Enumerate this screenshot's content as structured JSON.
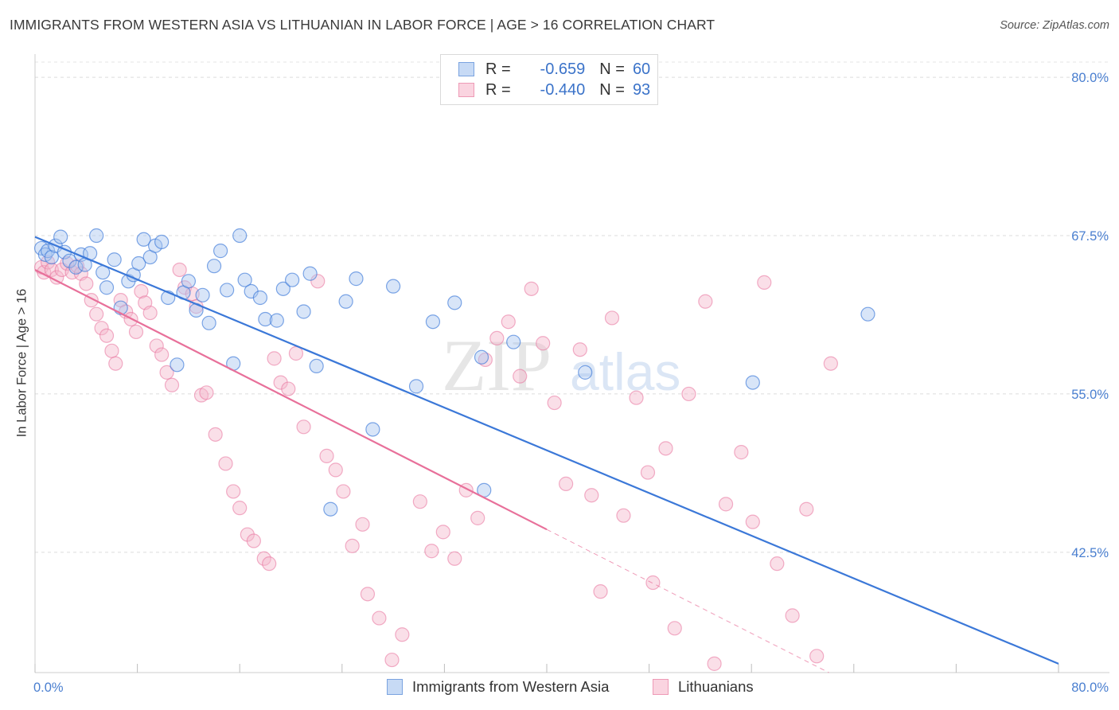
{
  "title": "IMMIGRANTS FROM WESTERN ASIA VS LITHUANIAN IN LABOR FORCE | AGE > 16 CORRELATION CHART",
  "source": "Source: ZipAtlas.com",
  "watermark": {
    "zip": "ZIP",
    "atlas": "atlas"
  },
  "legend": {
    "rows": [
      {
        "r_label": "R =",
        "r_value": "-0.659",
        "n_label": "N =",
        "n_value": "60"
      },
      {
        "r_label": "R =",
        "r_value": "-0.440",
        "n_label": "N =",
        "n_value": "93"
      }
    ]
  },
  "chart_data": {
    "type": "scatter",
    "ylabel": "In Labor Force | Age > 16",
    "xlabel": "",
    "xlim": [
      0,
      80
    ],
    "ylim": [
      33.0,
      81.2
    ],
    "x_ticks": [
      0,
      80
    ],
    "x_tick_labels": [
      "0.0%",
      "80.0%"
    ],
    "y_ticks": [
      42.5,
      55.0,
      67.5,
      80.0
    ],
    "y_tick_labels": [
      "42.5%",
      "55.0%",
      "67.5%",
      "80.0%"
    ],
    "grid": true,
    "legend_position": "bottom",
    "colors": {
      "blue": "#3b78d8",
      "blue_fill": "#a9c6f0",
      "pink": "#e8709a",
      "pink_fill": "#f4b7cb"
    },
    "series": [
      {
        "name": "Immigrants from Western Asia",
        "color": "#3b78d8",
        "trend": {
          "x0": 0,
          "y0": 67.4,
          "x1": 80,
          "y1": 33.7
        },
        "points": [
          [
            0.5,
            66.5
          ],
          [
            0.8,
            66.0
          ],
          [
            1.0,
            66.3
          ],
          [
            1.3,
            65.8
          ],
          [
            1.6,
            66.7
          ],
          [
            2.0,
            67.4
          ],
          [
            2.3,
            66.2
          ],
          [
            2.7,
            65.5
          ],
          [
            3.2,
            65.0
          ],
          [
            3.6,
            66.0
          ],
          [
            3.9,
            65.2
          ],
          [
            4.3,
            66.1
          ],
          [
            4.8,
            67.5
          ],
          [
            5.3,
            64.6
          ],
          [
            5.6,
            63.4
          ],
          [
            6.2,
            65.6
          ],
          [
            6.7,
            61.8
          ],
          [
            7.3,
            63.9
          ],
          [
            7.7,
            64.4
          ],
          [
            8.1,
            65.3
          ],
          [
            8.5,
            67.2
          ],
          [
            9.0,
            65.8
          ],
          [
            9.4,
            66.7
          ],
          [
            9.9,
            67.0
          ],
          [
            10.4,
            62.6
          ],
          [
            11.1,
            57.3
          ],
          [
            11.6,
            63.0
          ],
          [
            12.0,
            63.9
          ],
          [
            12.6,
            61.6
          ],
          [
            13.1,
            62.8
          ],
          [
            13.6,
            60.6
          ],
          [
            14.0,
            65.1
          ],
          [
            14.5,
            66.3
          ],
          [
            15.0,
            63.2
          ],
          [
            15.5,
            57.4
          ],
          [
            16.0,
            67.5
          ],
          [
            16.4,
            64.0
          ],
          [
            16.9,
            63.1
          ],
          [
            17.6,
            62.6
          ],
          [
            18.0,
            60.9
          ],
          [
            18.9,
            60.8
          ],
          [
            19.4,
            63.3
          ],
          [
            20.1,
            64.0
          ],
          [
            21.0,
            61.5
          ],
          [
            21.5,
            64.5
          ],
          [
            22.0,
            57.2
          ],
          [
            23.1,
            45.9
          ],
          [
            24.3,
            62.3
          ],
          [
            25.1,
            64.1
          ],
          [
            26.4,
            52.2
          ],
          [
            28.0,
            63.5
          ],
          [
            29.8,
            55.6
          ],
          [
            31.1,
            60.7
          ],
          [
            32.8,
            62.2
          ],
          [
            34.9,
            57.9
          ],
          [
            35.1,
            47.4
          ],
          [
            37.4,
            59.1
          ],
          [
            43.0,
            56.7
          ],
          [
            56.1,
            55.9
          ],
          [
            65.1,
            61.3
          ]
        ]
      },
      {
        "name": "Lithuanians",
        "color": "#e8709a",
        "trend": {
          "x0": 0,
          "y0": 64.8,
          "x1": 40,
          "y1": 44.3,
          "dash_x1": 80,
          "dash_y1": 23.8
        },
        "points": [
          [
            0.5,
            65.0
          ],
          [
            0.7,
            64.6
          ],
          [
            1.0,
            65.4
          ],
          [
            1.3,
            64.8
          ],
          [
            1.7,
            64.2
          ],
          [
            2.1,
            64.8
          ],
          [
            2.5,
            65.3
          ],
          [
            2.9,
            64.6
          ],
          [
            3.3,
            65.1
          ],
          [
            3.6,
            64.5
          ],
          [
            4.0,
            63.7
          ],
          [
            4.4,
            62.4
          ],
          [
            4.8,
            61.3
          ],
          [
            5.2,
            60.2
          ],
          [
            5.6,
            59.6
          ],
          [
            6.0,
            58.4
          ],
          [
            6.3,
            57.4
          ],
          [
            6.7,
            62.4
          ],
          [
            7.1,
            61.5
          ],
          [
            7.5,
            60.9
          ],
          [
            7.9,
            59.9
          ],
          [
            8.3,
            63.1
          ],
          [
            8.6,
            62.2
          ],
          [
            9.0,
            61.4
          ],
          [
            9.5,
            58.8
          ],
          [
            9.9,
            58.1
          ],
          [
            10.3,
            56.7
          ],
          [
            10.7,
            55.7
          ],
          [
            11.3,
            64.8
          ],
          [
            11.7,
            63.4
          ],
          [
            12.3,
            62.9
          ],
          [
            12.6,
            61.9
          ],
          [
            13.0,
            54.9
          ],
          [
            13.4,
            55.1
          ],
          [
            14.1,
            51.8
          ],
          [
            14.9,
            49.5
          ],
          [
            15.5,
            47.3
          ],
          [
            16.0,
            46.0
          ],
          [
            16.6,
            43.9
          ],
          [
            17.1,
            43.4
          ],
          [
            17.9,
            42.0
          ],
          [
            18.3,
            41.6
          ],
          [
            18.7,
            57.8
          ],
          [
            19.2,
            55.9
          ],
          [
            19.8,
            55.4
          ],
          [
            20.4,
            58.2
          ],
          [
            21.0,
            52.4
          ],
          [
            22.1,
            63.9
          ],
          [
            22.8,
            50.1
          ],
          [
            23.5,
            49.0
          ],
          [
            24.1,
            47.3
          ],
          [
            24.8,
            43.0
          ],
          [
            25.6,
            44.7
          ],
          [
            26.0,
            39.2
          ],
          [
            26.9,
            37.3
          ],
          [
            27.9,
            34.0
          ],
          [
            28.7,
            36.0
          ],
          [
            30.1,
            46.5
          ],
          [
            31.0,
            42.6
          ],
          [
            31.9,
            44.1
          ],
          [
            32.8,
            42.0
          ],
          [
            33.7,
            47.4
          ],
          [
            34.6,
            45.2
          ],
          [
            35.2,
            57.7
          ],
          [
            36.1,
            59.4
          ],
          [
            37.0,
            60.7
          ],
          [
            37.9,
            56.4
          ],
          [
            38.8,
            63.3
          ],
          [
            39.7,
            59.0
          ],
          [
            40.6,
            54.3
          ],
          [
            41.5,
            47.9
          ],
          [
            42.6,
            58.5
          ],
          [
            43.5,
            47.0
          ],
          [
            44.2,
            39.4
          ],
          [
            45.1,
            61.0
          ],
          [
            46.0,
            45.4
          ],
          [
            47.0,
            54.7
          ],
          [
            47.9,
            48.8
          ],
          [
            48.3,
            40.1
          ],
          [
            49.3,
            50.7
          ],
          [
            50.0,
            36.5
          ],
          [
            51.1,
            55.0
          ],
          [
            52.4,
            62.3
          ],
          [
            53.1,
            33.7
          ],
          [
            54.0,
            46.3
          ],
          [
            55.2,
            50.4
          ],
          [
            56.1,
            44.9
          ],
          [
            57.0,
            63.8
          ],
          [
            58.0,
            41.6
          ],
          [
            59.2,
            37.5
          ],
          [
            60.3,
            45.9
          ],
          [
            61.1,
            34.3
          ],
          [
            62.2,
            57.4
          ]
        ]
      }
    ]
  }
}
